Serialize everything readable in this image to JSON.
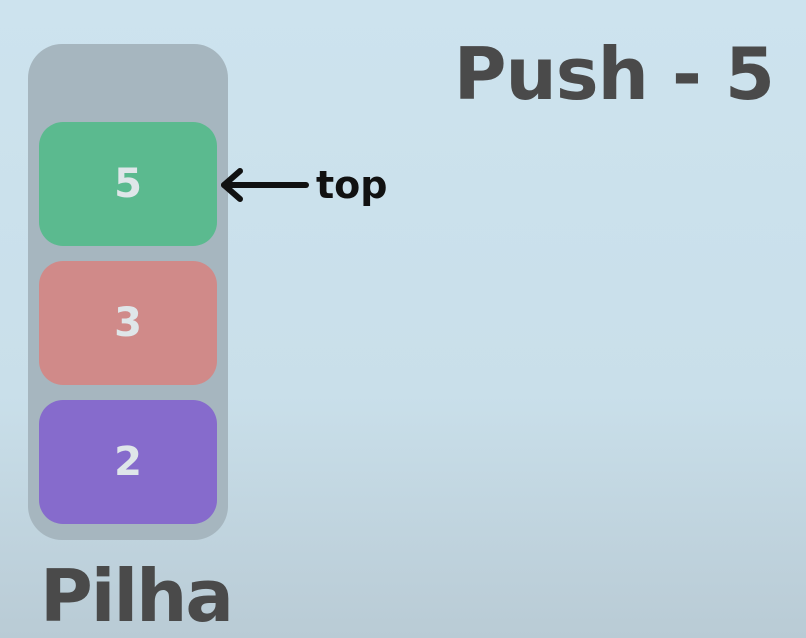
{
  "title": "Push - 5",
  "caption": "Pilha",
  "pointer_label": "top",
  "stack": {
    "items": [
      {
        "value": "5",
        "color": "#5bba8f"
      },
      {
        "value": "3",
        "color": "#d08a89"
      },
      {
        "value": "2",
        "color": "#866bcc"
      }
    ]
  },
  "colors": {
    "background": "#cde3ee",
    "container": "#a6b6bf",
    "heading": "#4a4a4a",
    "item_text": "#dfe6e9"
  }
}
